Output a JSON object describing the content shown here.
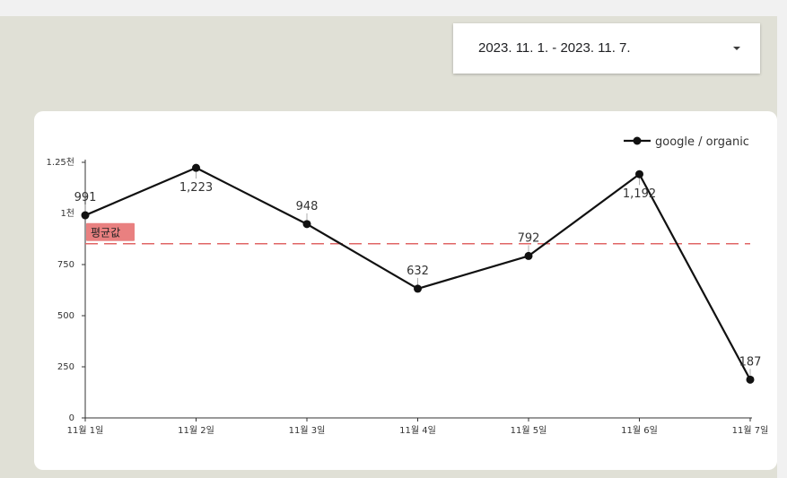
{
  "date_range": {
    "label": "2023. 11. 1. - 2023. 11. 7."
  },
  "icons": {
    "dropdown": "chevron-down-icon"
  },
  "colors": {
    "series": "#111111",
    "average_line": "#e06666",
    "average_label_bg": "#e98080",
    "card": "#ffffff",
    "canvas": "#e0e0d6"
  },
  "chart_data": {
    "type": "line",
    "categories": [
      "11월 1일",
      "11월 2일",
      "11월 3일",
      "11월 4일",
      "11월 5일",
      "11월 6일",
      "11월 7일"
    ],
    "series": [
      {
        "name": "google / organic",
        "values": [
          991,
          1223,
          948,
          632,
          792,
          1192,
          187
        ],
        "value_labels": [
          "991",
          "1,223",
          "948",
          "632",
          "792",
          "1,192",
          "187"
        ]
      }
    ],
    "y_ticks": [
      {
        "value": 0,
        "label": "0"
      },
      {
        "value": 250,
        "label": "250"
      },
      {
        "value": 500,
        "label": "500"
      },
      {
        "value": 750,
        "label": "750"
      },
      {
        "value": 1000,
        "label": "1천"
      },
      {
        "value": 1250,
        "label": "1.25천"
      }
    ],
    "ylim": [
      0,
      1250
    ],
    "average": {
      "label": "평균값",
      "value": 852
    },
    "legend_position": "top-right",
    "grid": false
  }
}
